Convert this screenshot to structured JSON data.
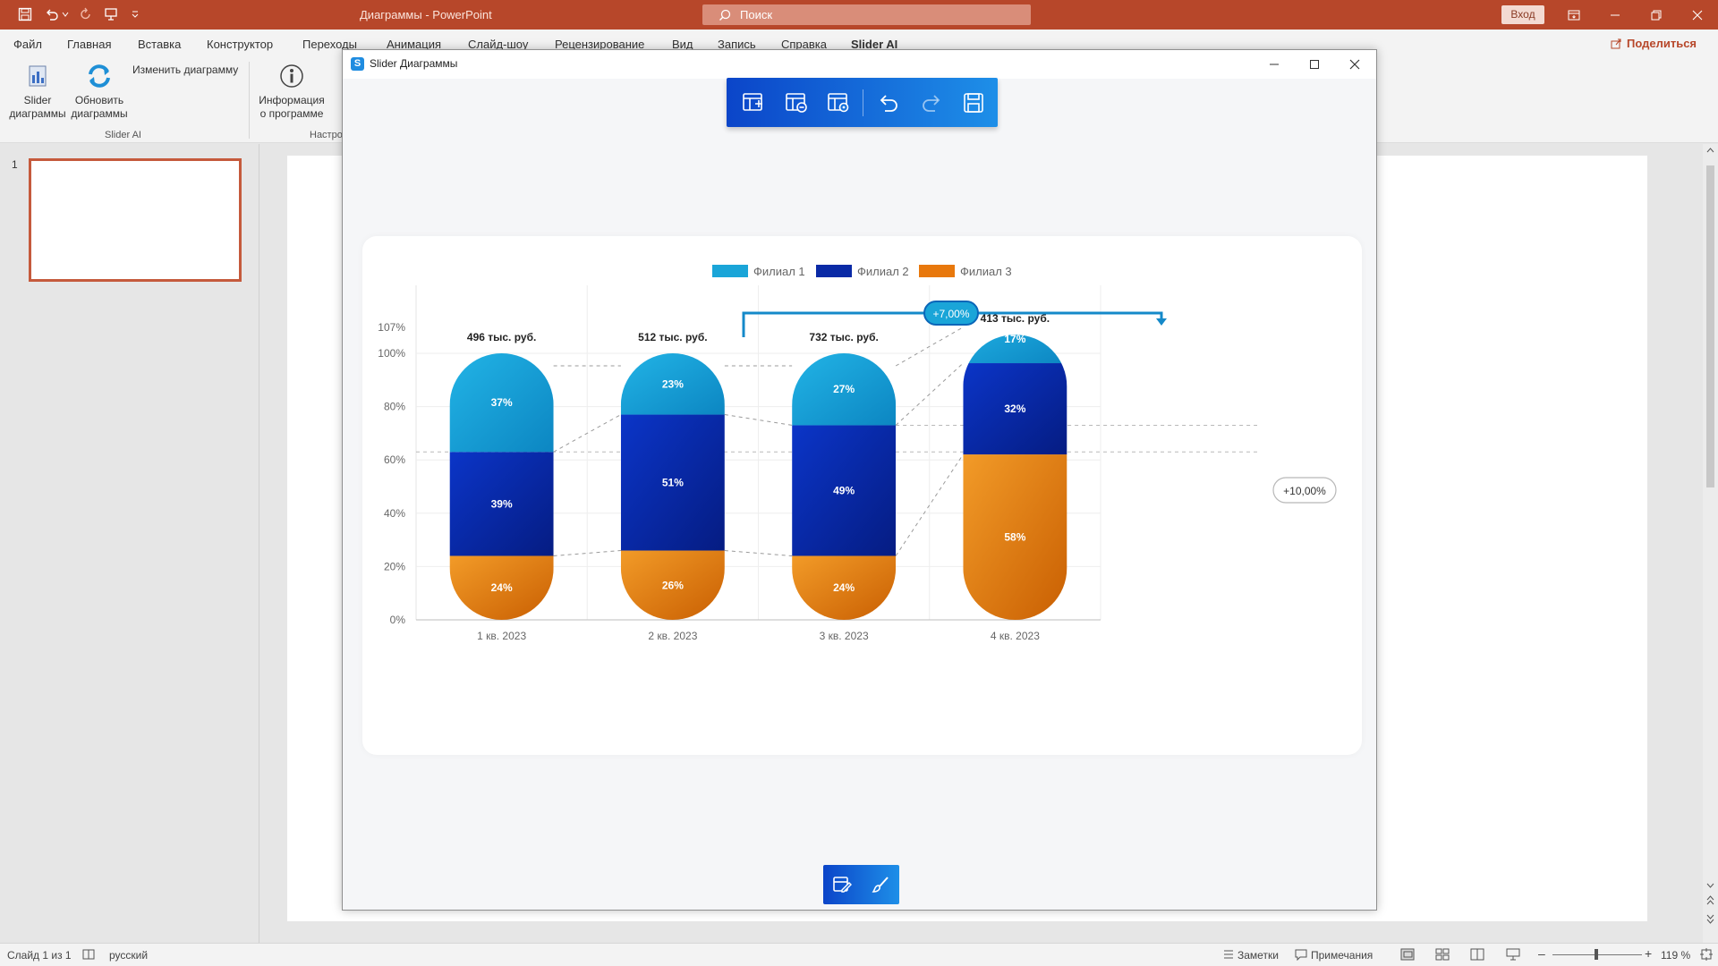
{
  "app": {
    "title": "Диаграммы - PowerPoint",
    "search_placeholder": "Поиск",
    "signin": "Вход",
    "share": "Поделиться"
  },
  "tabs": [
    "Файл",
    "Главная",
    "Вставка",
    "Конструктор",
    "Переходы",
    "Анимация",
    "Слайд-шоу",
    "Рецензирование",
    "Вид",
    "Запись",
    "Справка",
    "Slider AI"
  ],
  "ribbon": {
    "slider_charts": "Slider диаграммы",
    "update_charts": "Обновить диаграммы",
    "edit_chart": "Изменить диаграмму",
    "about": "Информация о программе",
    "group_slider": "Slider AI",
    "group_settings": "Настро"
  },
  "thumbnails": {
    "slide_number": "1"
  },
  "dialog": {
    "title": "Slider Диаграммы"
  },
  "colors": {
    "branch1": "#1aa5d8",
    "branch2": "#0a2aa6",
    "branch3": "#e8780c",
    "accent": "#1f7fe0"
  },
  "chart_data": {
    "type": "bar",
    "stacked": true,
    "categories": [
      "1 кв. 2023",
      "2 кв. 2023",
      "3 кв. 2023",
      "4 кв. 2023"
    ],
    "series": [
      {
        "name": "Филиал 3",
        "values": [
          24,
          26,
          24,
          58
        ]
      },
      {
        "name": "Филиал 2",
        "values": [
          39,
          51,
          49,
          32
        ]
      },
      {
        "name": "Филиал 1",
        "values": [
          37,
          23,
          27,
          17
        ]
      }
    ],
    "legend_order": [
      "Филиал 1",
      "Филиал 2",
      "Филиал 3"
    ],
    "totals": [
      "496 тыс. руб.",
      "512 тыс. руб.",
      "732 тыс. руб.",
      "413 тыс. руб."
    ],
    "stack_heights": [
      100,
      100,
      100,
      107
    ],
    "y_ticks": [
      "0%",
      "20%",
      "40%",
      "60%",
      "80%",
      "100%",
      "107%"
    ],
    "y_tick_values": [
      0,
      20,
      40,
      60,
      80,
      100,
      107
    ],
    "ylim": [
      0,
      107
    ],
    "legend_position": "top",
    "grid": true,
    "annotations": {
      "difference_arrow": "+7,00%",
      "level_difference": "+10,00%"
    }
  },
  "status": {
    "slide": "Слайд 1 из 1",
    "language": "русский",
    "notes": "Заметки",
    "comments": "Примечания",
    "zoom": "119 %"
  }
}
